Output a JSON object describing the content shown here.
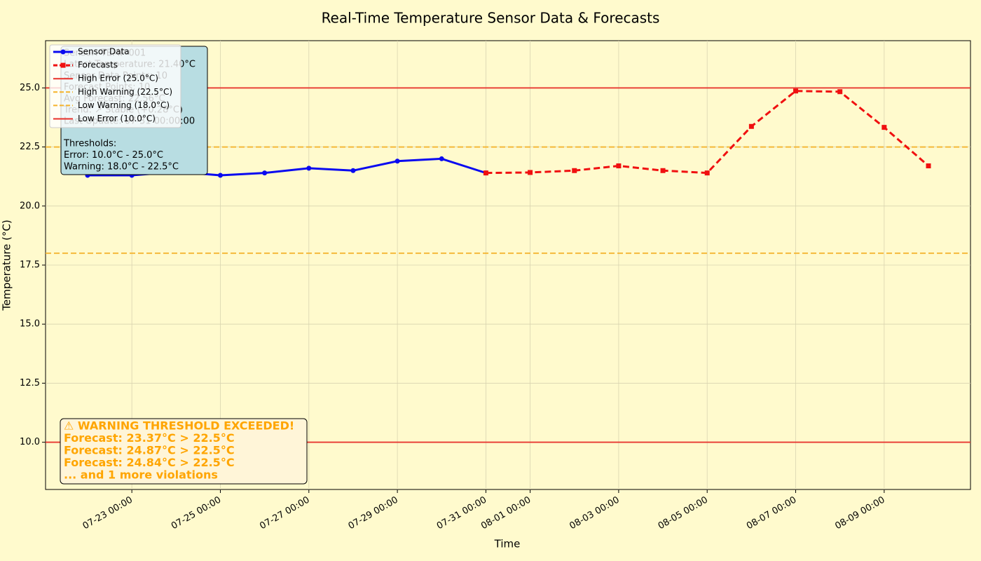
{
  "chart_data": {
    "type": "line",
    "title": "Real-Time Temperature Sensor Data & Forecasts",
    "xlabel": "Time",
    "ylabel": "Temperature (°C)",
    "xlim": [
      "07-21 01:12",
      "08-10 22:48"
    ],
    "xticks": [
      "07-23 00:00",
      "07-25 00:00",
      "07-27 00:00",
      "07-29 00:00",
      "07-31 00:00",
      "08-01 00:00",
      "08-03 00:00",
      "08-05 00:00",
      "08-07 00:00",
      "08-09 00:00"
    ],
    "ylim": [
      8.0,
      27.0
    ],
    "yticks": [
      {
        "value": 10,
        "label": "10.0"
      },
      {
        "value": 12.5,
        "label": "12.5"
      },
      {
        "value": 15,
        "label": "15.0"
      },
      {
        "value": 17.5,
        "label": "17.5"
      },
      {
        "value": 20,
        "label": "20.0"
      },
      {
        "value": 22.5,
        "label": "22.5"
      },
      {
        "value": 25,
        "label": "25.0"
      }
    ],
    "grid": true,
    "series": [
      {
        "name": "Sensor Data",
        "color": "#0a0af0",
        "dash": "none",
        "marker": "circle",
        "x": [
          "07-22 00:00",
          "07-23 00:00",
          "07-24 00:00",
          "07-25 00:00",
          "07-26 00:00",
          "07-27 00:00",
          "07-28 00:00",
          "07-29 00:00",
          "07-30 00:00",
          "07-31 00:00"
        ],
        "values": [
          21.3,
          21.3,
          21.45,
          21.3,
          21.4,
          21.6,
          21.5,
          21.9,
          22.0,
          21.4
        ]
      },
      {
        "name": "Forecasts",
        "color": "#f01010",
        "dash": "9,5",
        "marker": "square",
        "x": [
          "07-31 00:00",
          "08-01 00:00",
          "08-02 00:00",
          "08-03 00:00",
          "08-04 00:00",
          "08-05 00:00",
          "08-06 00:00",
          "08-07 00:00",
          "08-08 00:00",
          "08-09 00:00",
          "08-10 00:00"
        ],
        "values": [
          21.4,
          21.42,
          21.5,
          21.7,
          21.5,
          21.4,
          23.37,
          24.87,
          24.84,
          23.33,
          21.7
        ]
      }
    ],
    "thresholds": [
      {
        "name": "High Error (25.0°C)",
        "value": 25.0,
        "color": "#e8302a",
        "dash": "none"
      },
      {
        "name": "High Warning (22.5°C)",
        "value": 22.5,
        "color": "#f5b32a",
        "dash": "8,4"
      },
      {
        "name": "Low Warning (18.0°C)",
        "value": 18.0,
        "color": "#f5b32a",
        "dash": "8,4"
      },
      {
        "name": "Low Error (10.0°C)",
        "value": 10.0,
        "color": "#e8302a",
        "dash": "none"
      }
    ],
    "legend": "upper left",
    "info_box": {
      "lines": [
        "Sensor: TEMP-001",
        "Latest Temperature: 21.40°C",
        "Sensor Data Points: 10",
        "Forecast Points: 10",
        "Avg Forecast: 22.56°C",
        "Trend: ↗ Stable (+0.28°C)",
        "Last Update: 07-31 00:00:00"
      ],
      "thresholds": [
        "Thresholds:",
        "Error: 10.0°C - 25.0°C",
        "Warning: 18.0°C - 22.5°C"
      ]
    },
    "warning_box": [
      "⚠ WARNING THRESHOLD EXCEEDED!",
      "Forecast: 23.37°C > 22.5°C",
      "Forecast: 24.87°C > 22.5°C",
      "Forecast: 24.84°C > 22.5°C",
      "... and 1 more violations"
    ]
  }
}
